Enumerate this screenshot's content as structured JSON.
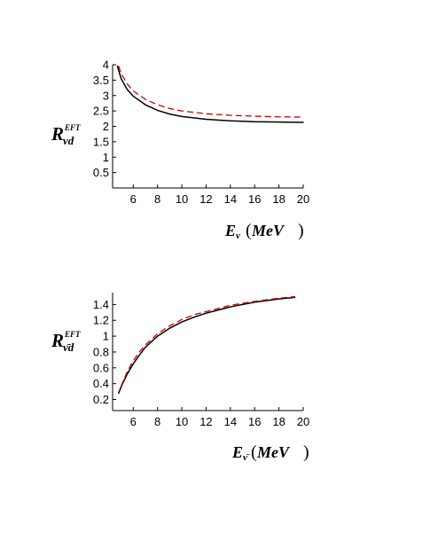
{
  "chart_data": [
    {
      "type": "line",
      "ylabel": {
        "main": "R",
        "sub": "νd",
        "sup": "EFT"
      },
      "xlabel": {
        "main": "E",
        "sub": "ν",
        "unit": "MeV"
      },
      "xlim": [
        4.3,
        20
      ],
      "ylim": [
        0,
        4
      ],
      "x_ticks": [
        "6",
        "8",
        "10",
        "12",
        "14",
        "16",
        "18",
        "20"
      ],
      "y_ticks": [
        "0.5",
        "1",
        "1.5",
        "2",
        "2.5",
        "3",
        "3.5",
        "4"
      ],
      "series": [
        {
          "style": "solid",
          "color": "#000000",
          "x": [
            4.7,
            5.0,
            5.5,
            6.0,
            7.0,
            8.0,
            9.0,
            10.0,
            12.0,
            14.0,
            16.0,
            18.0,
            20.0
          ],
          "y": [
            3.95,
            3.55,
            3.2,
            2.98,
            2.7,
            2.52,
            2.4,
            2.32,
            2.23,
            2.18,
            2.15,
            2.14,
            2.13
          ]
        },
        {
          "style": "dashed",
          "color": "#cc0000",
          "x": [
            4.8,
            5.0,
            5.5,
            6.0,
            7.0,
            8.0,
            9.0,
            10.0,
            12.0,
            14.0,
            16.0,
            18.0,
            20.0
          ],
          "y": [
            3.95,
            3.72,
            3.38,
            3.15,
            2.88,
            2.7,
            2.58,
            2.5,
            2.41,
            2.36,
            2.33,
            2.31,
            2.3
          ]
        }
      ]
    },
    {
      "type": "line",
      "ylabel": {
        "main": "R",
        "sub": "ν̄d",
        "sup": "EFT"
      },
      "xlabel": {
        "main": "E",
        "sub": "ν̄",
        "unit": "MeV"
      },
      "xlim": [
        4.3,
        20
      ],
      "ylim": [
        0.06,
        1.55
      ],
      "x_ticks": [
        "6",
        "8",
        "10",
        "12",
        "14",
        "16",
        "18",
        "20"
      ],
      "y_ticks": [
        "0.2",
        "0.4",
        "0.6",
        "0.8",
        "1",
        "1.2",
        "1.4"
      ],
      "series": [
        {
          "style": "solid",
          "color": "#000000",
          "x": [
            4.8,
            5.0,
            5.5,
            6.0,
            6.5,
            7.0,
            8.0,
            9.0,
            10.0,
            11.0,
            12.0,
            14.0,
            16.0,
            18.0,
            19.3
          ],
          "y": [
            0.28,
            0.36,
            0.52,
            0.65,
            0.76,
            0.86,
            1.0,
            1.1,
            1.18,
            1.24,
            1.29,
            1.37,
            1.43,
            1.47,
            1.49
          ]
        },
        {
          "style": "dashed",
          "color": "#cc0000",
          "x": [
            5.0,
            5.5,
            6.0,
            6.5,
            7.0,
            8.0,
            9.0,
            10.0,
            11.0,
            12.0,
            14.0,
            16.0,
            18.0,
            19.3
          ],
          "y": [
            0.37,
            0.55,
            0.69,
            0.8,
            0.89,
            1.03,
            1.13,
            1.21,
            1.27,
            1.31,
            1.39,
            1.44,
            1.48,
            1.5
          ]
        }
      ]
    }
  ]
}
